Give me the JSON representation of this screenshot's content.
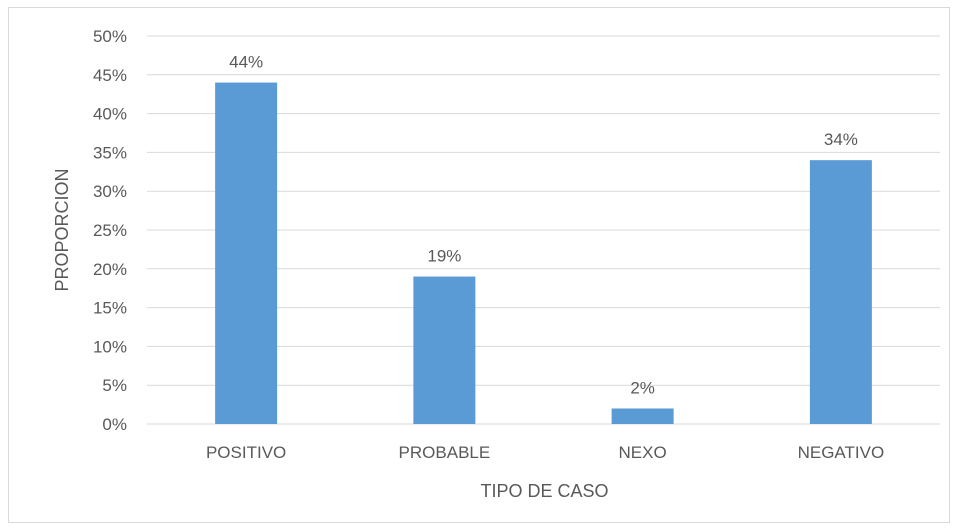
{
  "chart_data": {
    "type": "bar",
    "categories": [
      "POSITIVO",
      "PROBABLE",
      "NEXO",
      "NEGATIVO"
    ],
    "values": [
      44,
      19,
      2,
      34
    ],
    "data_labels": [
      "44%",
      "19%",
      "2%",
      "34%"
    ],
    "title": "",
    "xlabel": "TIPO DE CASO",
    "ylabel": "PROPORCION",
    "ylim": [
      0,
      50
    ],
    "y_ticks": [
      0,
      5,
      10,
      15,
      20,
      25,
      30,
      35,
      40,
      45,
      50
    ],
    "y_tick_labels": [
      "0%",
      "5%",
      "10%",
      "15%",
      "20%",
      "25%",
      "30%",
      "35%",
      "40%",
      "45%",
      "50%"
    ],
    "grid": true,
    "legend": "none",
    "colors": {
      "bar": "#5b9bd5",
      "grid": "#d9d9d9",
      "text": "#595959"
    }
  }
}
